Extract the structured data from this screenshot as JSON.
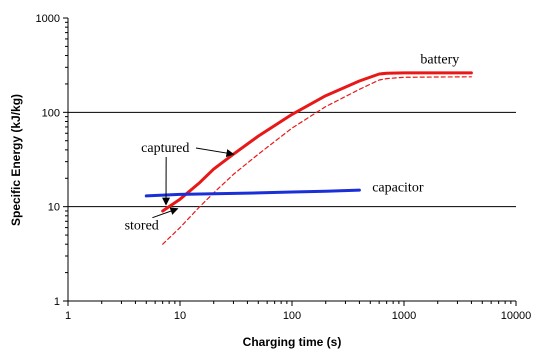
{
  "chart_data": {
    "type": "line",
    "xlabel": "Charging time (s)",
    "ylabel": "Specific Energy (kJ/kg)",
    "x_scale": "log",
    "y_scale": "log",
    "xlim": [
      1,
      10000
    ],
    "ylim": [
      1,
      1000
    ],
    "x_ticks": [
      "1",
      "10",
      "100",
      "1000",
      "10000"
    ],
    "y_ticks": [
      "1",
      "10",
      "100",
      "1000"
    ],
    "grid": "horizontal major lines",
    "colors": {
      "battery": "#e81818",
      "capacitor": "#1a2fd8"
    },
    "series": [
      {
        "key": "battery_captured",
        "style": "solid",
        "color": "#e81818",
        "x": [
          7,
          10,
          15,
          20,
          30,
          50,
          100,
          200,
          400,
          600,
          700,
          1000,
          2000,
          4000
        ],
        "y": [
          9,
          12,
          18,
          25,
          36,
          56,
          95,
          150,
          215,
          255,
          260,
          262,
          262,
          262
        ]
      },
      {
        "key": "battery_stored",
        "style": "dashed",
        "color": "#e81818",
        "x": [
          7,
          10,
          15,
          20,
          30,
          50,
          100,
          200,
          400,
          600,
          700,
          1000,
          2000,
          4000
        ],
        "y": [
          4,
          6,
          10,
          14,
          22,
          36,
          68,
          115,
          175,
          220,
          228,
          235,
          237,
          238
        ]
      },
      {
        "key": "capacitor_captured",
        "style": "solid",
        "color": "#1a2fd8",
        "x": [
          5,
          10,
          50,
          100,
          200,
          400
        ],
        "y": [
          13,
          13.5,
          14,
          14.3,
          14.6,
          15
        ]
      }
    ],
    "annotations": [
      {
        "name": "battery",
        "text": "battery",
        "x": 1400,
        "y": 330
      },
      {
        "name": "capacitor",
        "text": "capacitor",
        "x": 520,
        "y": 14.5
      },
      {
        "name": "captured",
        "text": "captured",
        "x": 4.5,
        "y": 38,
        "arrow_to": {
          "x": 30,
          "y": 36
        },
        "arrow2_to": {
          "x": 7.5,
          "y": 10.5
        }
      },
      {
        "name": "stored",
        "text": "stored",
        "x": 3.2,
        "y": 5.7,
        "arrow_to": {
          "x": 9.5,
          "y": 9.5
        }
      }
    ]
  }
}
